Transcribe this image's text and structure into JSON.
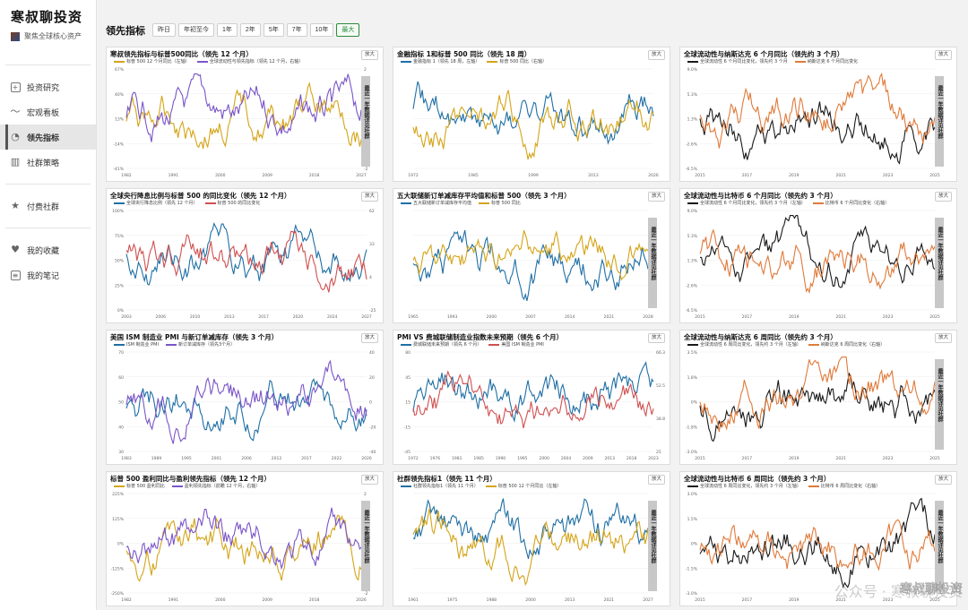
{
  "brand": {
    "title": "寒叔聊投资",
    "subtitle": "聚焦全球核心资产"
  },
  "nav": [
    {
      "label": "投资研究",
      "icon": "plus-box-icon",
      "active": false
    },
    {
      "label": "宏观看板",
      "icon": "wave-icon",
      "active": false
    },
    {
      "label": "领先指标",
      "icon": "pie-icon",
      "active": true
    },
    {
      "label": "社群策略",
      "icon": "bar-chart-icon",
      "active": false
    },
    {
      "label": "付费社群",
      "icon": "star-icon",
      "active": false
    },
    {
      "label": "我的收藏",
      "icon": "heart-icon",
      "active": false
    },
    {
      "label": "我的笔记",
      "icon": "note-icon",
      "active": false
    }
  ],
  "header": {
    "title": "领先指标",
    "ranges": [
      "昨日",
      "年初至今",
      "1年",
      "2年",
      "5年",
      "7年",
      "10年",
      "最大"
    ],
    "active_range": "最大"
  },
  "expand_label": "放大",
  "locked_text": "最近一年数据详见社群",
  "watermark": "公众号 · 寒叔聊投资",
  "weibo_mark": "寒叔聊投资",
  "colors": {
    "gold": "#d4a418",
    "purple": "#7a55c8",
    "blue": "#1f6fa5",
    "red": "#d05050",
    "orange": "#e07a3a",
    "black": "#1a1a1a",
    "accent": "#2d8a3e"
  },
  "charts": [
    {
      "title": "寒叔领先指标与标普500同比（领先 12 个月）",
      "legend": [
        "标普 500 12 个月同比（左轴）",
        "全球流动性与领先指标（领先 12 个月，右轴）"
      ],
      "colors": [
        "gold",
        "purple"
      ],
      "xticks": [
        "1982",
        "1991",
        "2000",
        "2009",
        "2018",
        "2027"
      ],
      "ylticks": [
        "67%",
        "40%",
        "13%",
        "-14%",
        "-41%"
      ],
      "yrticks": [
        "2",
        "1",
        "0",
        "-1",
        "-2"
      ],
      "locked": true,
      "seed": 3
    },
    {
      "title": "金融指标 1和标普 500 同比（领先 18 周）",
      "legend": [
        "金融指标 1（领先 18 周，左轴）",
        "标普 500 同比（右轴）"
      ],
      "colors": [
        "blue",
        "gold"
      ],
      "xticks": [
        "1972",
        "1985",
        "1999",
        "2013",
        "2026"
      ],
      "ylticks": [],
      "yrticks": [],
      "locked": false,
      "seed": 7
    },
    {
      "title": "全球流动性与纳斯达克 6 个月同比（领先约 3 个月）",
      "legend": [
        "全球流动性 6 个月同比变化，领先约 3 个月",
        "纳斯达克 6 个月同比变化"
      ],
      "colors": [
        "black",
        "orange"
      ],
      "xticks": [
        "2015",
        "2017",
        "2019",
        "2021",
        "2023",
        "2025"
      ],
      "ylticks": [
        "9.0%",
        "5.3%",
        "1.3%",
        "-2.6%",
        "-6.5%"
      ],
      "yrticks": [],
      "locked": true,
      "seed": 11
    },
    {
      "title": "全球央行降息比例与标普 500 的同比变化（领先 12 个月）",
      "legend": [
        "全球央行降息比例（领先 12 个月）",
        "标普 500 的同比变化"
      ],
      "colors": [
        "blue",
        "red"
      ],
      "xticks": [
        "2003",
        "2006",
        "2010",
        "2013",
        "2017",
        "2020",
        "2024",
        "2027"
      ],
      "ylticks": [
        "100%",
        "75%",
        "50%",
        "25%",
        "0%"
      ],
      "yrticks": [
        "62",
        "33",
        "4",
        "-25"
      ],
      "locked": false,
      "seed": 13
    },
    {
      "title": "五大联储新订单减库存平均值和标普 500（领先 3 个月）",
      "legend": [
        "五大联储新订单减库存平均值",
        "标普 500 同比"
      ],
      "colors": [
        "blue",
        "gold"
      ],
      "xticks": [
        "1965",
        "1993",
        "2000",
        "2007",
        "2014",
        "2021",
        "2028"
      ],
      "ylticks": [],
      "yrticks": [],
      "locked": true,
      "seed": 17
    },
    {
      "title": "全球流动性与比特币 6 个月同比（领先约 3 个月）",
      "legend": [
        "全球流动性 6 个月同比变化，领先约 3 个月（左轴）",
        "比特币 6 个月同比变化（右轴）"
      ],
      "colors": [
        "black",
        "orange"
      ],
      "xticks": [
        "2015",
        "2017",
        "2019",
        "2021",
        "2023",
        "2025"
      ],
      "ylticks": [
        "9.0%",
        "5.3%",
        "1.3%",
        "-2.6%",
        "-6.5%"
      ],
      "yrticks": [],
      "locked": true,
      "seed": 19
    },
    {
      "title": "美国 ISM 制造业 PMI 与新订单减库存（领先 3 个月）",
      "legend": [
        "ISM 制造业 PMI",
        "新订单减库存（领先3个月）"
      ],
      "colors": [
        "blue",
        "purple"
      ],
      "xticks": [
        "1983",
        "1989",
        "1995",
        "2001",
        "2006",
        "2012",
        "2017",
        "2022",
        "2026"
      ],
      "ylticks": [
        "70",
        "60",
        "50",
        "40",
        "30"
      ],
      "yrticks": [
        "40",
        "20",
        "0",
        "-20",
        "-40"
      ],
      "locked": false,
      "seed": 23
    },
    {
      "title": "PMI VS 费城联储制造业指数未来预期（领先 6 个月）",
      "legend": [
        "费城联储未来预期（领先 6 个月）",
        "美国 ISM 制造业 PMI"
      ],
      "colors": [
        "blue",
        "red"
      ],
      "xticks": [
        "1972",
        "1976",
        "1981",
        "1985",
        "1990",
        "1995",
        "2000",
        "2004",
        "2009",
        "2013",
        "2018",
        "2023"
      ],
      "ylticks": [
        "80",
        "45",
        "15",
        "-15",
        "-45"
      ],
      "yrticks": [
        "66.3",
        "52.5",
        "38.8",
        "25"
      ],
      "locked": false,
      "seed": 29
    },
    {
      "title": "全球流动性与纳斯达克 6 周同比（领先约 3 个月）",
      "legend": [
        "全球流动性 6 周同比变化，领先约 3 个月（左轴）",
        "纳斯达克 6 周同比变化（右轴）"
      ],
      "colors": [
        "black",
        "orange"
      ],
      "xticks": [
        "2015",
        "2017",
        "2019",
        "2021",
        "2023",
        "2025"
      ],
      "ylticks": [
        "3.5%",
        "1.8%",
        "0%",
        "-1.8%",
        "-3.0%"
      ],
      "yrticks": [],
      "locked": true,
      "seed": 31
    },
    {
      "title": "标普 500 盈利同比与盈利领先指标（领先 12 个月）",
      "legend": [
        "标普 500 盈利同比",
        "盈利领先指标（前瞻 12 个月，右轴）"
      ],
      "colors": [
        "gold",
        "purple"
      ],
      "xticks": [
        "1982",
        "1991",
        "2000",
        "2009",
        "2018",
        "2026"
      ],
      "ylticks": [
        "225%",
        "125%",
        "0%",
        "-125%",
        "-250%"
      ],
      "yrticks": [
        "2",
        "1",
        "0",
        "-1",
        "-2"
      ],
      "locked": true,
      "seed": 37
    },
    {
      "title": "社群领先指标1（领先 11 个月）",
      "legend": [
        "社群领先指标1（领先 11 个月）",
        "标普 500 12 个月同比（左轴）"
      ],
      "colors": [
        "blue",
        "gold"
      ],
      "xticks": [
        "1961",
        "1975",
        "1988",
        "2000",
        "2013",
        "2021",
        "2027"
      ],
      "ylticks": [],
      "yrticks": [],
      "locked": true,
      "seed": 41
    },
    {
      "title": "全球流动性与比特币 6 周同比（领先约 3 个月）",
      "legend": [
        "全球流动性 6 周同比变化，领先约 3 个月（左轴）",
        "比特币 6 周同比变化（右轴）"
      ],
      "colors": [
        "black",
        "orange"
      ],
      "xticks": [
        "2015",
        "2017",
        "2019",
        "2021",
        "2023",
        "2025"
      ],
      "ylticks": [
        "3.0%",
        "1.5%",
        "0%",
        "-1.5%",
        "-3.0%"
      ],
      "yrticks": [],
      "locked": true,
      "seed": 43
    }
  ]
}
